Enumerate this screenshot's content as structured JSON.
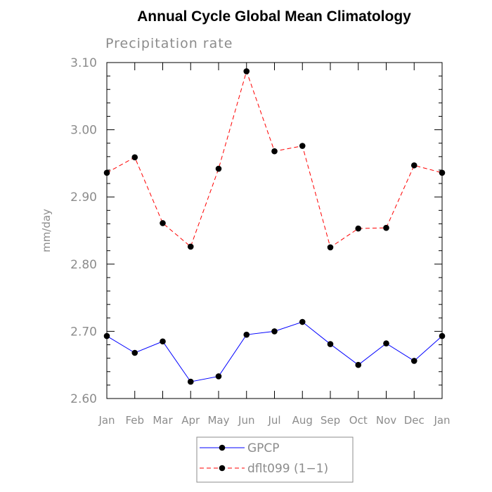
{
  "chart_data": {
    "type": "line",
    "title": "Annual Cycle Global Mean Climatology",
    "subtitle": "Precipitation rate",
    "ylabel": "mm/day",
    "xlabel": "",
    "categories": [
      "Jan",
      "Feb",
      "Mar",
      "Apr",
      "May",
      "Jun",
      "Jul",
      "Aug",
      "Sep",
      "Oct",
      "Nov",
      "Dec",
      "Jan"
    ],
    "ylim": [
      2.6,
      3.1
    ],
    "yticks": [
      "2.60",
      "2.70",
      "2.80",
      "2.90",
      "3.00",
      "3.10"
    ],
    "ytick_values": [
      2.6,
      2.7,
      2.8,
      2.9,
      3.0,
      3.1
    ],
    "legend_position": "bottom",
    "series": [
      {
        "name": "GPCP",
        "color": "#0000ff",
        "style": "solid",
        "marker": "circle",
        "values": [
          2.693,
          2.668,
          2.685,
          2.625,
          2.633,
          2.695,
          2.7,
          2.714,
          2.681,
          2.65,
          2.682,
          2.656,
          2.693
        ]
      },
      {
        "name": "dflt099 (1−1)",
        "color": "#ff0000",
        "style": "dashed",
        "marker": "circle",
        "values": [
          2.936,
          2.959,
          2.861,
          2.826,
          2.942,
          3.087,
          2.968,
          2.976,
          2.825,
          2.853,
          2.854,
          2.947,
          2.936
        ]
      }
    ]
  }
}
